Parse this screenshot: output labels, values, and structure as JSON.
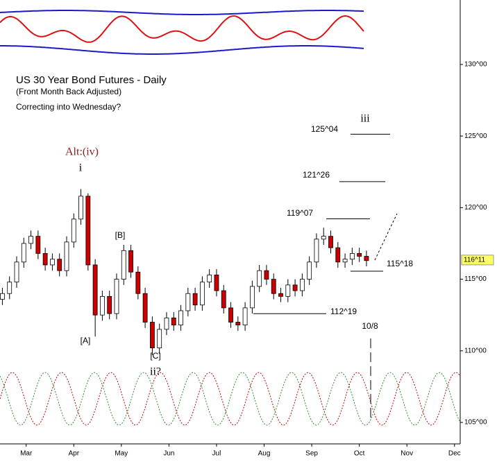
{
  "chart_data": {
    "type": "candlestick",
    "title": "US 30 Year Bond Futures - Daily",
    "subtitle": "(Front Month Back Adjusted)",
    "note": "Correcting into Wednesday?",
    "wave_labels": [
      "Alt:(iv)",
      "i",
      "[A]",
      "[B]",
      "[C]",
      "ii?",
      "iii"
    ],
    "date_note": "10/8",
    "x": [
      2.5,
      2.65,
      2.8,
      2.95,
      3.1,
      3.25,
      3.4,
      3.55,
      3.7,
      3.85,
      4.0,
      4.15,
      4.3,
      4.45,
      4.6,
      4.75,
      4.9,
      5.05,
      5.2,
      5.35,
      5.5,
      5.65,
      5.8,
      5.95,
      6.1,
      6.25,
      6.4,
      6.55,
      6.7,
      6.85,
      7.0,
      7.15,
      7.3,
      7.45,
      7.6,
      7.75,
      7.9,
      8.05,
      8.2,
      8.35,
      8.5,
      8.65,
      8.8,
      8.95,
      9.1,
      9.25,
      9.4,
      9.55,
      9.7,
      9.85,
      10.0,
      10.15
    ],
    "open": [
      113.6,
      114.0,
      114.8,
      116.2,
      117.5,
      118.0,
      116.8,
      116.0,
      116.4,
      115.6,
      117.6,
      119.2,
      120.8,
      116.0,
      112.5,
      113.8,
      112.6,
      115.0,
      117.0,
      115.5,
      114.0,
      112.0,
      110.2,
      111.5,
      112.3,
      111.8,
      112.8,
      114.0,
      113.2,
      114.8,
      115.3,
      114.2,
      113.0,
      112.0,
      111.8,
      113.0,
      114.5,
      115.6,
      115.0,
      114.0,
      113.8,
      114.6,
      114.2,
      115.0,
      116.2,
      117.8,
      118.0,
      117.2,
      116.2,
      116.4,
      116.8,
      116.6
    ],
    "high": [
      114.4,
      115.2,
      116.6,
      117.9,
      118.4,
      118.4,
      117.2,
      116.8,
      116.8,
      118.0,
      119.6,
      121.3,
      121.0,
      116.4,
      114.2,
      114.2,
      115.4,
      117.4,
      117.4,
      115.9,
      114.4,
      112.4,
      111.9,
      112.7,
      112.7,
      113.2,
      114.4,
      114.4,
      115.2,
      115.7,
      115.7,
      114.6,
      113.4,
      112.4,
      113.4,
      114.9,
      116.0,
      116.0,
      115.4,
      114.4,
      115.0,
      115.0,
      115.4,
      116.6,
      118.2,
      118.6,
      118.4,
      117.6,
      116.8,
      117.2,
      117.2,
      117.0
    ],
    "low": [
      113.2,
      113.6,
      114.4,
      115.8,
      117.1,
      116.4,
      115.6,
      115.6,
      115.2,
      115.2,
      117.2,
      118.8,
      115.6,
      111.0,
      112.1,
      112.2,
      112.2,
      114.6,
      115.1,
      113.6,
      111.6,
      109.7,
      109.8,
      111.1,
      111.4,
      111.4,
      112.4,
      112.8,
      112.8,
      114.4,
      113.8,
      112.6,
      111.6,
      111.4,
      111.4,
      112.6,
      114.1,
      114.6,
      113.6,
      113.4,
      113.4,
      113.8,
      113.8,
      114.6,
      115.8,
      117.4,
      116.8,
      115.8,
      115.8,
      116.0,
      116.2,
      115.9
    ],
    "close": [
      114.0,
      114.8,
      116.2,
      117.5,
      118.0,
      116.8,
      116.0,
      116.4,
      115.6,
      117.6,
      119.2,
      120.8,
      116.0,
      112.5,
      113.8,
      112.6,
      115.0,
      117.0,
      115.5,
      114.0,
      112.0,
      110.2,
      111.5,
      112.3,
      111.8,
      112.8,
      114.0,
      113.2,
      114.8,
      115.3,
      114.2,
      113.0,
      112.0,
      111.8,
      113.0,
      114.5,
      115.6,
      115.0,
      114.0,
      113.8,
      114.6,
      114.2,
      115.0,
      116.2,
      117.8,
      118.0,
      117.2,
      116.2,
      116.4,
      116.8,
      116.6,
      116.3
    ],
    "up_color": "#ffffff",
    "down_color": "#cc0000",
    "levels": [
      {
        "value": 125.125,
        "label": "125^04"
      },
      {
        "value": 121.8125,
        "label": "121^26"
      },
      {
        "value": 119.21875,
        "label": "119^07"
      },
      {
        "value": 115.5625,
        "label": "115^18"
      },
      {
        "value": 112.59375,
        "label": "112^19"
      }
    ],
    "last_price": {
      "value": 116.34375,
      "label": "116^11"
    },
    "xlim": [
      2.45,
      12.12
    ],
    "xticks": [
      {
        "value": 3,
        "label": "Mar"
      },
      {
        "value": 4,
        "label": "Apr"
      },
      {
        "value": 5,
        "label": "May"
      },
      {
        "value": 6,
        "label": "Jun"
      },
      {
        "value": 7,
        "label": "Jul"
      },
      {
        "value": 8,
        "label": "Aug"
      },
      {
        "value": 9,
        "label": "Sep"
      },
      {
        "value": 10,
        "label": "Oct"
      },
      {
        "value": 11,
        "label": "Nov"
      },
      {
        "value": 12,
        "label": "Dec"
      }
    ],
    "ylim": [
      103.5,
      134.5
    ],
    "yticks": [
      {
        "value": 105,
        "label": "105^00"
      },
      {
        "value": 110,
        "label": "110^00"
      },
      {
        "value": 115,
        "label": "115^00"
      },
      {
        "value": 120,
        "label": "120^00"
      },
      {
        "value": 125,
        "label": "125^00"
      },
      {
        "value": 130,
        "label": "130^00"
      }
    ]
  }
}
